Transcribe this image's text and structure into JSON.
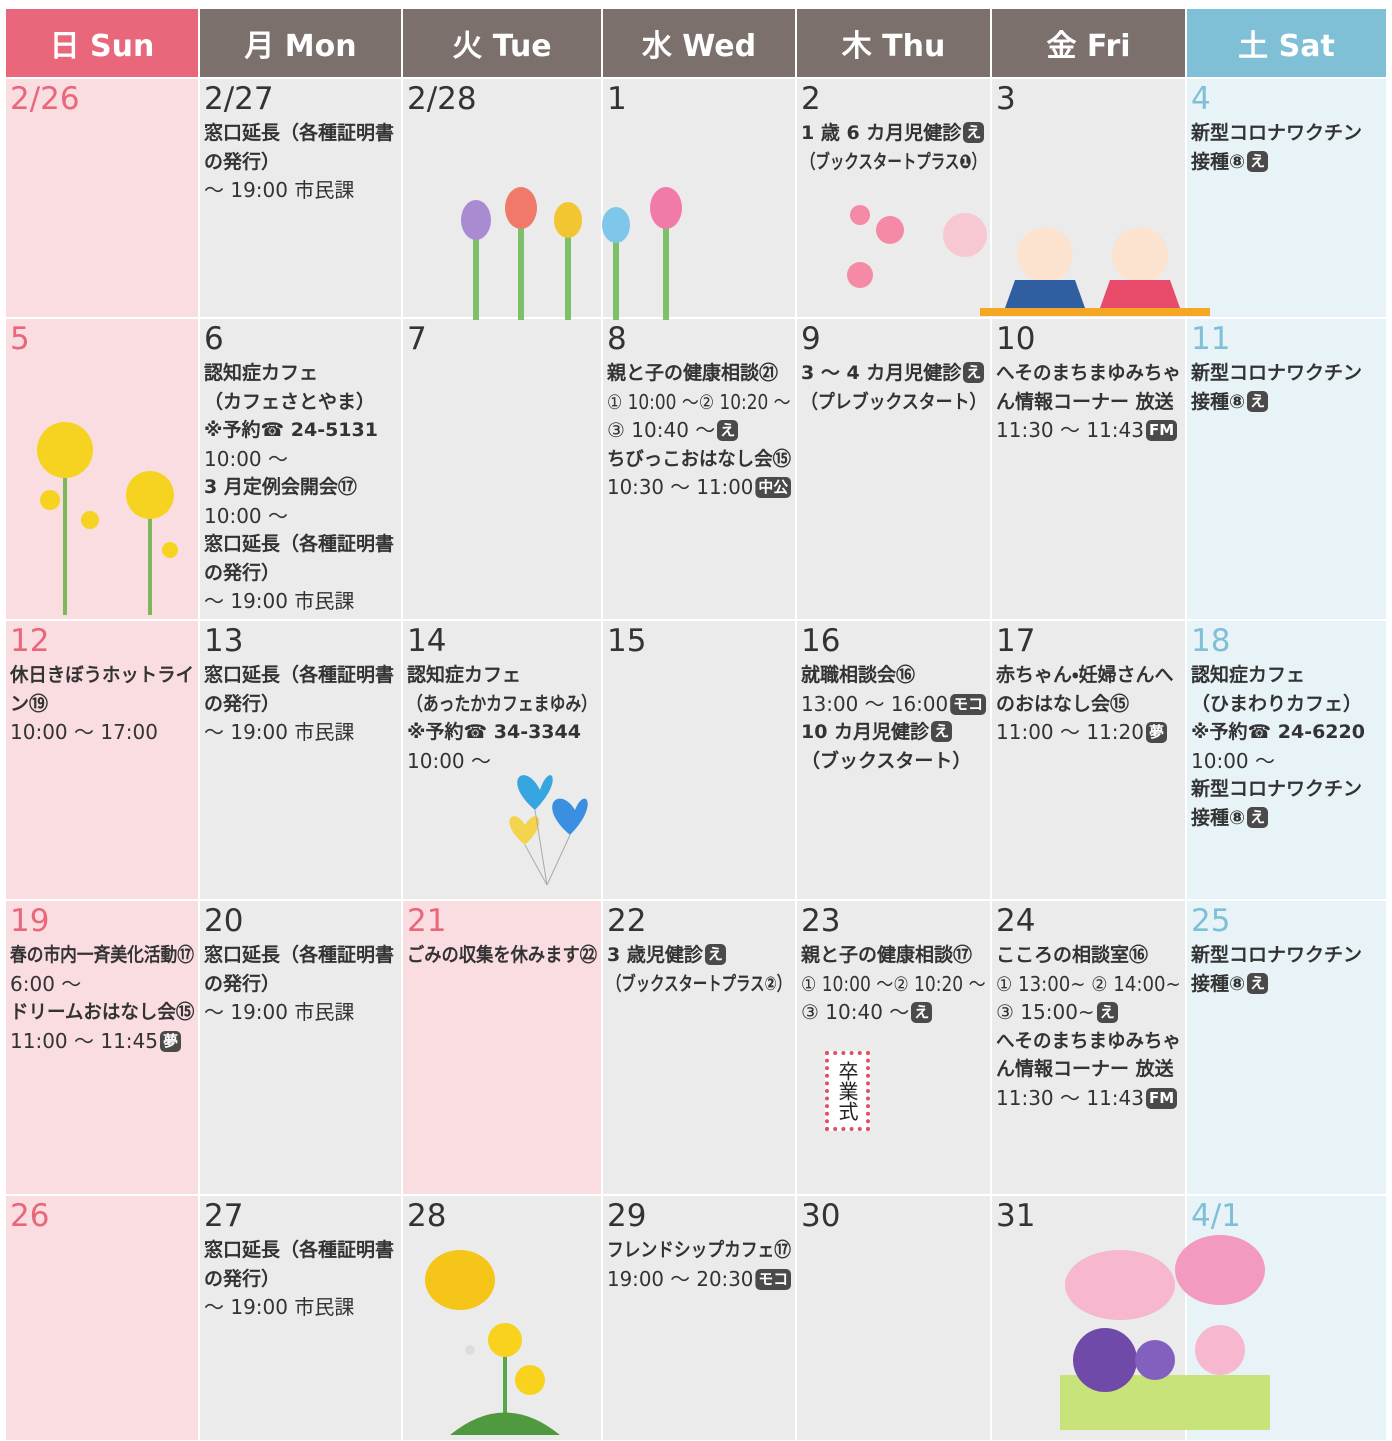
{
  "header": {
    "days": [
      "日 Sun",
      "月 Mon",
      "火 Tue",
      "水 Wed",
      "木 Thu",
      "金 Fri",
      "土 Sat"
    ]
  },
  "weeks": [
    [
      {
        "date": "2/26",
        "lines": []
      },
      {
        "date": "2/27",
        "lines": [
          {
            "t": "窓口延長（各種証明書",
            "b": true
          },
          {
            "t": "の発行）",
            "b": true
          },
          {
            "t": "～ 19:00 市民課"
          }
        ]
      },
      {
        "date": "2/28",
        "lines": []
      },
      {
        "date": "1",
        "lines": []
      },
      {
        "date": "2",
        "lines": [
          {
            "t": "1 歳 6 カ月児健診",
            "b": true,
            "badge": "え"
          },
          {
            "t": "（ブックスタートプラス❶）",
            "b": true
          }
        ]
      },
      {
        "date": "3",
        "lines": []
      },
      {
        "date": "4",
        "lines": [
          {
            "t": "新型コロナワクチン",
            "b": true
          },
          {
            "t": "接種⑧",
            "b": true,
            "badge": "え"
          }
        ]
      }
    ],
    [
      {
        "date": "5",
        "lines": []
      },
      {
        "date": "6",
        "lines": [
          {
            "t": "認知症カフェ",
            "b": true
          },
          {
            "t": "（カフェさとやま）",
            "b": true
          },
          {
            "t": "※予約☎ 24-5131",
            "b": true
          },
          {
            "t": "10:00 ～"
          },
          {
            "t": "3 月定例会開会⑰",
            "b": true
          },
          {
            "t": "10:00 ～"
          },
          {
            "t": "窓口延長（各種証明書",
            "b": true
          },
          {
            "t": "の発行）",
            "b": true
          },
          {
            "t": "～ 19:00 市民課"
          }
        ]
      },
      {
        "date": "7",
        "lines": []
      },
      {
        "date": "8",
        "lines": [
          {
            "t": "親と子の健康相談㉑",
            "b": true
          },
          {
            "t": "① 10:00 ～② 10:20 ～"
          },
          {
            "t": "③ 10:40 ～",
            "badge": "え"
          },
          {
            "t": "ちびっこおはなし会⑮",
            "b": true
          },
          {
            "t": "10:30 ～ 11:00",
            "badge": "中公"
          }
        ]
      },
      {
        "date": "9",
        "lines": [
          {
            "t": "3 ～ 4 カ月児健診",
            "b": true,
            "badge": "え"
          },
          {
            "t": "（プレブックスタート）",
            "b": true
          }
        ]
      },
      {
        "date": "10",
        "lines": [
          {
            "t": "へそのまちまゆみちゃ",
            "b": true
          },
          {
            "t": "ん情報コーナー 放送",
            "b": true
          },
          {
            "t": "11:30 ～ 11:43",
            "badge": "FM"
          }
        ]
      },
      {
        "date": "11",
        "lines": [
          {
            "t": "新型コロナワクチン",
            "b": true
          },
          {
            "t": "接種⑧",
            "b": true,
            "badge": "え"
          }
        ]
      }
    ],
    [
      {
        "date": "12",
        "lines": [
          {
            "t": "休日きぼうホットライ",
            "b": true
          },
          {
            "t": "ン⑲",
            "b": true
          },
          {
            "t": "10:00 ～ 17:00"
          }
        ]
      },
      {
        "date": "13",
        "lines": [
          {
            "t": "窓口延長（各種証明書",
            "b": true
          },
          {
            "t": "の発行）",
            "b": true
          },
          {
            "t": "～ 19:00 市民課"
          }
        ]
      },
      {
        "date": "14",
        "lines": [
          {
            "t": "認知症カフェ",
            "b": true
          },
          {
            "t": "（あったかカフェまゆみ）",
            "b": true
          },
          {
            "t": "※予約☎ 34-3344",
            "b": true
          },
          {
            "t": "10:00 ～"
          }
        ]
      },
      {
        "date": "15",
        "lines": []
      },
      {
        "date": "16",
        "lines": [
          {
            "t": "就職相談会⑯",
            "b": true
          },
          {
            "t": "13:00 ～ 16:00",
            "badge": "モコ"
          },
          {
            "t": "10 カ月児健診",
            "b": true,
            "badge": "え"
          },
          {
            "t": "（ブックスタート）",
            "b": true
          }
        ]
      },
      {
        "date": "17",
        "lines": [
          {
            "t": "赤ちゃん・妊婦さんへ",
            "b": true
          },
          {
            "t": "のおはなし会⑮",
            "b": true
          },
          {
            "t": "11:00 ～ 11:20",
            "badge": "夢"
          }
        ]
      },
      {
        "date": "18",
        "lines": [
          {
            "t": "認知症カフェ",
            "b": true
          },
          {
            "t": "（ひまわりカフェ）",
            "b": true
          },
          {
            "t": "※予約☎ 24-6220",
            "b": true
          },
          {
            "t": "10:00 ～"
          },
          {
            "t": "新型コロナワクチン",
            "b": true
          },
          {
            "t": "接種⑧",
            "b": true,
            "badge": "え"
          }
        ]
      }
    ],
    [
      {
        "date": "19",
        "lines": [
          {
            "t": "春の市内一斉美化活動⑰",
            "b": true
          },
          {
            "t": "6:00 ～"
          },
          {
            "t": "ドリームおはなし会⑮",
            "b": true
          },
          {
            "t": "11:00 ～ 11:45",
            "badge": "夢"
          }
        ]
      },
      {
        "date": "20",
        "lines": [
          {
            "t": "窓口延長（各種証明書",
            "b": true
          },
          {
            "t": "の発行）",
            "b": true
          },
          {
            "t": "～ 19:00 市民課"
          }
        ]
      },
      {
        "date": "21",
        "holiday": true,
        "lines": [
          {
            "t": "ごみの収集を休みます㉒",
            "b": true
          }
        ]
      },
      {
        "date": "22",
        "lines": [
          {
            "t": "3 歳児健診",
            "b": true,
            "badge": "え"
          },
          {
            "t": "（ブックスタートプラス②）",
            "b": true
          }
        ]
      },
      {
        "date": "23",
        "sign": "卒業式",
        "lines": [
          {
            "t": "親と子の健康相談⑰",
            "b": true
          },
          {
            "t": "① 10:00 ～② 10:20 ～"
          },
          {
            "t": "③ 10:40 ～",
            "badge": "え"
          }
        ]
      },
      {
        "date": "24",
        "lines": [
          {
            "t": "こころの相談室⑯",
            "b": true
          },
          {
            "t": "① 13:00~ ② 14:00~"
          },
          {
            "t": "③ 15:00~",
            "badge": "え"
          },
          {
            "t": "へそのまちまゆみちゃ",
            "b": true
          },
          {
            "t": "ん情報コーナー 放送",
            "b": true
          },
          {
            "t": "11:30 ～ 11:43",
            "badge": "FM"
          }
        ]
      },
      {
        "date": "25",
        "lines": [
          {
            "t": "新型コロナワクチン",
            "b": true
          },
          {
            "t": "接種⑧",
            "b": true,
            "badge": "え"
          }
        ]
      }
    ],
    [
      {
        "date": "26",
        "lines": []
      },
      {
        "date": "27",
        "lines": [
          {
            "t": "窓口延長（各種証明書",
            "b": true
          },
          {
            "t": "の発行）",
            "b": true
          },
          {
            "t": "～ 19:00 市民課"
          }
        ]
      },
      {
        "date": "28",
        "lines": []
      },
      {
        "date": "29",
        "lines": [
          {
            "t": "フレンドシップカフェ⑰",
            "b": true
          },
          {
            "t": "19:00 ～ 20:30",
            "badge": "モコ"
          }
        ]
      },
      {
        "date": "30",
        "lines": []
      },
      {
        "date": "31",
        "lines": []
      },
      {
        "date": "4/1",
        "lines": []
      }
    ]
  ]
}
